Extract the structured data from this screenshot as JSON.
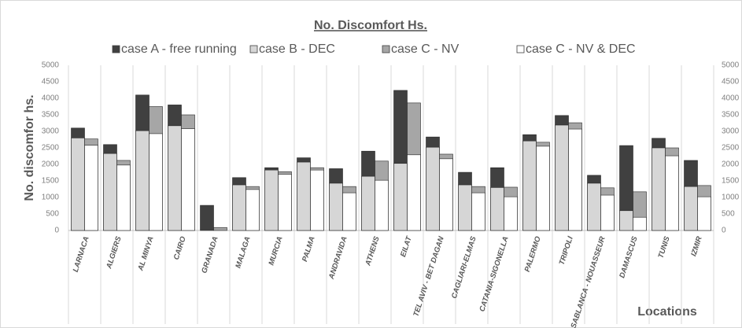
{
  "chart_data": {
    "type": "bar",
    "title": "No. Discomfort Hs.",
    "y_label": "No. discomfor hs.",
    "x_label": "Locations",
    "categories": [
      "LARNACA",
      "ALGIERS",
      "AL MINYA",
      "CAIRO",
      "GRANADA",
      "MALAGA",
      "MURCIA",
      "PALMA",
      "ANDRAVIDA",
      "ATHENS",
      "EILAT",
      "TEL AVIV - BET DAGAN",
      "CAGLIARI-ELMAS",
      "CATANIA-SIGONELLA",
      "PALERMO",
      "TRIPOLI",
      "CASABLANCA - NOUASSEUR",
      "DAMASCUS",
      "TUNIS",
      "IZMIR"
    ],
    "series": [
      {
        "name": "case A - free running",
        "color": "#404040",
        "values": [
          3100,
          2600,
          4100,
          3800,
          760,
          1600,
          1900,
          2200,
          1870,
          2400,
          4240,
          2830,
          1760,
          1900,
          2900,
          3480,
          1670,
          2570,
          2790,
          2120
        ]
      },
      {
        "name": "case B - DEC",
        "color": "#d6d6d6",
        "values": [
          2800,
          2330,
          3020,
          3170,
          0,
          1380,
          1830,
          2070,
          1430,
          1640,
          2030,
          2520,
          1380,
          1300,
          2710,
          3190,
          1430,
          600,
          2500,
          1330
        ]
      },
      {
        "name": "case C - NV",
        "color": "#a6a6a6",
        "values": [
          2770,
          2120,
          3750,
          3500,
          90,
          1330,
          1780,
          1900,
          1330,
          2100,
          3860,
          2310,
          1330,
          1310,
          2670,
          3260,
          1290,
          1170,
          2500,
          1360
        ]
      },
      {
        "name": "case C - NV & DEC",
        "color": "#ffffff",
        "values": [
          2580,
          1980,
          2930,
          3080,
          0,
          1240,
          1700,
          1830,
          1140,
          1520,
          2290,
          2170,
          1140,
          1020,
          2550,
          3070,
          1070,
          400,
          2260,
          1020
        ]
      }
    ],
    "ylim": [
      0,
      5000
    ],
    "yticks": [
      0,
      500,
      1000,
      1500,
      2000,
      2500,
      3000,
      3500,
      4000,
      4500,
      5000
    ],
    "y2lim": [
      0,
      5000
    ],
    "y2ticks": [
      0,
      500,
      1000,
      1500,
      2000,
      2500,
      3000,
      3500,
      4000,
      4500,
      5000
    ],
    "grid": true
  }
}
